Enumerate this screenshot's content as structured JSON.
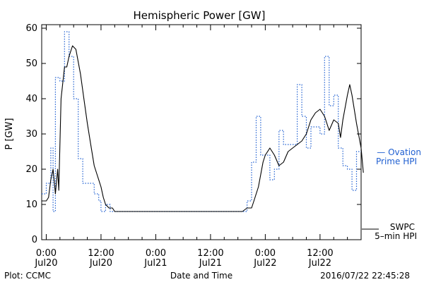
{
  "chart_data": {
    "type": "line",
    "title": "Hemispheric Power [GW]",
    "xlabel": "Date and Time",
    "ylabel": "P [GW]",
    "xlim": [
      "2016-07-19T23:00",
      "2016-07-22T21:00"
    ],
    "ylim": [
      0,
      61
    ],
    "yticks": [
      0,
      10,
      20,
      30,
      40,
      50,
      60
    ],
    "xticks": [
      {
        "time": "2016-07-20T00:00",
        "label1": "0:00",
        "label2": "Jul20"
      },
      {
        "time": "2016-07-20T12:00",
        "label1": "12:00",
        "label2": "Jul20"
      },
      {
        "time": "2016-07-21T00:00",
        "label1": "0:00",
        "label2": "Jul21"
      },
      {
        "time": "2016-07-21T12:00",
        "label1": "12:00",
        "label2": "Jul21"
      },
      {
        "time": "2016-07-22T00:00",
        "label1": "0:00",
        "label2": "Jul22"
      },
      {
        "time": "2016-07-22T12:00",
        "label1": "12:00",
        "label2": "Jul22"
      }
    ],
    "grid": false,
    "legend_position": "right",
    "series": [
      {
        "name": "SWPC 5-min HPI",
        "legend_lines": [
          "SWPC",
          "5–min HPI"
        ],
        "color": "#000000",
        "style": "solid",
        "points": [
          [
            "2016-07-19T23:00",
            11
          ],
          [
            "2016-07-20T00:00",
            11
          ],
          [
            "2016-07-20T00:30",
            12
          ],
          [
            "2016-07-20T01:00",
            17
          ],
          [
            "2016-07-20T01:30",
            20
          ],
          [
            "2016-07-20T02:00",
            13
          ],
          [
            "2016-07-20T02:30",
            20
          ],
          [
            "2016-07-20T02:45",
            14
          ],
          [
            "2016-07-20T03:15",
            40
          ],
          [
            "2016-07-20T04:00",
            49
          ],
          [
            "2016-07-20T04:30",
            49
          ],
          [
            "2016-07-20T05:00",
            52
          ],
          [
            "2016-07-20T05:45",
            55
          ],
          [
            "2016-07-20T06:30",
            54
          ],
          [
            "2016-07-20T07:30",
            47
          ],
          [
            "2016-07-20T08:15",
            40
          ],
          [
            "2016-07-20T09:00",
            33
          ],
          [
            "2016-07-20T09:45",
            27
          ],
          [
            "2016-07-20T10:30",
            21
          ],
          [
            "2016-07-20T11:15",
            18
          ],
          [
            "2016-07-20T12:00",
            15
          ],
          [
            "2016-07-20T12:30",
            12
          ],
          [
            "2016-07-20T13:00",
            10
          ],
          [
            "2016-07-20T13:45",
            9
          ],
          [
            "2016-07-20T14:30",
            9
          ],
          [
            "2016-07-20T15:00",
            8
          ],
          [
            "2016-07-21T18:00",
            8
          ],
          [
            "2016-07-21T19:00",
            8
          ],
          [
            "2016-07-21T20:00",
            9
          ],
          [
            "2016-07-21T21:00",
            9
          ],
          [
            "2016-07-21T21:30",
            11
          ],
          [
            "2016-07-21T22:30",
            15
          ],
          [
            "2016-07-21T23:30",
            22
          ],
          [
            "2016-07-22T00:00",
            24
          ],
          [
            "2016-07-22T01:00",
            26
          ],
          [
            "2016-07-22T02:00",
            24
          ],
          [
            "2016-07-22T03:00",
            21
          ],
          [
            "2016-07-22T04:00",
            22
          ],
          [
            "2016-07-22T05:00",
            25
          ],
          [
            "2016-07-22T06:00",
            26
          ],
          [
            "2016-07-22T07:00",
            27
          ],
          [
            "2016-07-22T08:00",
            28
          ],
          [
            "2016-07-22T09:00",
            30
          ],
          [
            "2016-07-22T10:00",
            34
          ],
          [
            "2016-07-22T11:00",
            36
          ],
          [
            "2016-07-22T12:00",
            37
          ],
          [
            "2016-07-22T13:00",
            35
          ],
          [
            "2016-07-22T14:00",
            31
          ],
          [
            "2016-07-22T15:00",
            34
          ],
          [
            "2016-07-22T16:00",
            33
          ],
          [
            "2016-07-22T16:30",
            29
          ],
          [
            "2016-07-22T17:00",
            34
          ],
          [
            "2016-07-22T18:00",
            41
          ],
          [
            "2016-07-22T18:30",
            44
          ],
          [
            "2016-07-22T19:00",
            41
          ],
          [
            "2016-07-22T20:00",
            33
          ],
          [
            "2016-07-22T21:00",
            26
          ],
          [
            "2016-07-22T21:30",
            19
          ]
        ]
      },
      {
        "name": "Ovation Prime HPI",
        "legend_lines": [
          "— Ovation",
          "Prime HPI"
        ],
        "color": "#1f5fd1",
        "style": "dotted",
        "points": [
          [
            "2016-07-19T23:00",
            13
          ],
          [
            "2016-07-20T00:00",
            13
          ],
          [
            "2016-07-20T00:00",
            16
          ],
          [
            "2016-07-20T01:00",
            16
          ],
          [
            "2016-07-20T01:00",
            26
          ],
          [
            "2016-07-20T01:30",
            26
          ],
          [
            "2016-07-20T01:30",
            8
          ],
          [
            "2016-07-20T02:00",
            8
          ],
          [
            "2016-07-20T02:00",
            46
          ],
          [
            "2016-07-20T03:00",
            46
          ],
          [
            "2016-07-20T03:00",
            45
          ],
          [
            "2016-07-20T04:00",
            45
          ],
          [
            "2016-07-20T04:00",
            59
          ],
          [
            "2016-07-20T05:00",
            59
          ],
          [
            "2016-07-20T05:00",
            52
          ],
          [
            "2016-07-20T06:00",
            52
          ],
          [
            "2016-07-20T06:00",
            40
          ],
          [
            "2016-07-20T07:00",
            40
          ],
          [
            "2016-07-20T07:00",
            23
          ],
          [
            "2016-07-20T08:00",
            23
          ],
          [
            "2016-07-20T08:00",
            16
          ],
          [
            "2016-07-20T10:30",
            16
          ],
          [
            "2016-07-20T10:30",
            13
          ],
          [
            "2016-07-20T11:30",
            13
          ],
          [
            "2016-07-20T11:30",
            11
          ],
          [
            "2016-07-20T12:00",
            11
          ],
          [
            "2016-07-20T12:00",
            8
          ],
          [
            "2016-07-20T13:00",
            8
          ],
          [
            "2016-07-20T13:00",
            10
          ],
          [
            "2016-07-20T14:00",
            10
          ],
          [
            "2016-07-20T14:00",
            8
          ],
          [
            "2016-07-21T20:00",
            8
          ],
          [
            "2016-07-21T20:00",
            11
          ],
          [
            "2016-07-21T21:00",
            11
          ],
          [
            "2016-07-21T21:00",
            22
          ],
          [
            "2016-07-21T22:00",
            22
          ],
          [
            "2016-07-21T22:00",
            35
          ],
          [
            "2016-07-21T23:00",
            35
          ],
          [
            "2016-07-21T23:00",
            24
          ],
          [
            "2016-07-22T01:00",
            24
          ],
          [
            "2016-07-22T01:00",
            17
          ],
          [
            "2016-07-22T02:00",
            17
          ],
          [
            "2016-07-22T02:00",
            20
          ],
          [
            "2016-07-22T03:00",
            20
          ],
          [
            "2016-07-22T03:00",
            31
          ],
          [
            "2016-07-22T04:00",
            31
          ],
          [
            "2016-07-22T04:00",
            27
          ],
          [
            "2016-07-22T07:00",
            27
          ],
          [
            "2016-07-22T07:00",
            44
          ],
          [
            "2016-07-22T08:00",
            44
          ],
          [
            "2016-07-22T08:00",
            35
          ],
          [
            "2016-07-22T09:00",
            35
          ],
          [
            "2016-07-22T09:00",
            26
          ],
          [
            "2016-07-22T10:00",
            26
          ],
          [
            "2016-07-22T10:00",
            32
          ],
          [
            "2016-07-22T12:00",
            32
          ],
          [
            "2016-07-22T12:00",
            30
          ],
          [
            "2016-07-22T13:00",
            30
          ],
          [
            "2016-07-22T13:00",
            52
          ],
          [
            "2016-07-22T14:00",
            52
          ],
          [
            "2016-07-22T14:00",
            38
          ],
          [
            "2016-07-22T15:00",
            38
          ],
          [
            "2016-07-22T15:00",
            41
          ],
          [
            "2016-07-22T16:00",
            41
          ],
          [
            "2016-07-22T16:00",
            26
          ],
          [
            "2016-07-22T17:00",
            26
          ],
          [
            "2016-07-22T17:00",
            21
          ],
          [
            "2016-07-22T18:00",
            21
          ],
          [
            "2016-07-22T18:00",
            20
          ],
          [
            "2016-07-22T19:00",
            20
          ],
          [
            "2016-07-22T19:00",
            14
          ],
          [
            "2016-07-22T20:00",
            14
          ],
          [
            "2016-07-22T20:00",
            25
          ],
          [
            "2016-07-22T21:00",
            25
          ]
        ]
      }
    ]
  },
  "footer": {
    "left": "Plot: CCMC",
    "center": "Date and Time",
    "right": "2016/07/22 22:45:28"
  }
}
